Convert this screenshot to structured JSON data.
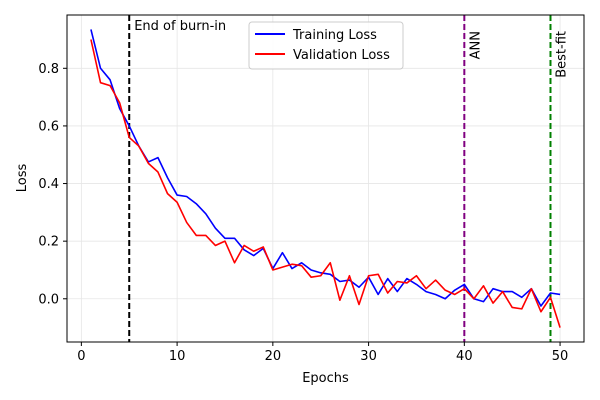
{
  "chart_data": {
    "type": "line",
    "title": "",
    "xlabel": "Epochs",
    "ylabel": "Loss",
    "xlim": [
      -1.5,
      52.5
    ],
    "ylim": [
      -0.15,
      0.985
    ],
    "xticks": [
      0,
      10,
      20,
      30,
      40,
      50
    ],
    "yticks": [
      0.0,
      0.2,
      0.4,
      0.6,
      0.8
    ],
    "ytick_labels": [
      "0.0",
      "0.2",
      "0.4",
      "0.6",
      "0.8"
    ],
    "grid": true,
    "legend_position": "top-center",
    "series": [
      {
        "name": "Training Loss",
        "color": "#0000ff",
        "x": [
          1,
          2,
          3,
          4,
          5,
          6,
          7,
          8,
          9,
          10,
          11,
          12,
          13,
          14,
          15,
          16,
          17,
          18,
          19,
          20,
          21,
          22,
          23,
          24,
          25,
          26,
          27,
          28,
          29,
          30,
          31,
          32,
          33,
          34,
          35,
          36,
          37,
          38,
          39,
          40,
          41,
          42,
          43,
          44,
          45,
          46,
          47,
          48,
          49,
          50
        ],
        "values": [
          0.935,
          0.8,
          0.76,
          0.66,
          0.6,
          0.53,
          0.475,
          0.49,
          0.42,
          0.36,
          0.355,
          0.33,
          0.295,
          0.245,
          0.21,
          0.21,
          0.17,
          0.15,
          0.175,
          0.105,
          0.16,
          0.105,
          0.125,
          0.1,
          0.09,
          0.085,
          0.06,
          0.065,
          0.04,
          0.075,
          0.015,
          0.07,
          0.025,
          0.07,
          0.05,
          0.025,
          0.015,
          0.0,
          0.03,
          0.05,
          0.0,
          -0.01,
          0.035,
          0.025,
          0.025,
          0.005,
          0.035,
          -0.025,
          0.02,
          0.015
        ]
      },
      {
        "name": "Validation Loss",
        "color": "#ff0000",
        "x": [
          1,
          2,
          3,
          4,
          5,
          6,
          7,
          8,
          9,
          10,
          11,
          12,
          13,
          14,
          15,
          16,
          17,
          18,
          19,
          20,
          21,
          22,
          23,
          24,
          25,
          26,
          27,
          28,
          29,
          30,
          31,
          32,
          33,
          34,
          35,
          36,
          37,
          38,
          39,
          40,
          41,
          42,
          43,
          44,
          45,
          46,
          47,
          48,
          49,
          50
        ],
        "values": [
          0.9,
          0.75,
          0.74,
          0.68,
          0.56,
          0.53,
          0.47,
          0.44,
          0.365,
          0.335,
          0.265,
          0.22,
          0.22,
          0.185,
          0.2,
          0.125,
          0.185,
          0.165,
          0.18,
          0.1,
          0.11,
          0.12,
          0.115,
          0.075,
          0.08,
          0.125,
          -0.005,
          0.08,
          -0.02,
          0.08,
          0.085,
          0.02,
          0.06,
          0.055,
          0.08,
          0.035,
          0.065,
          0.03,
          0.015,
          0.035,
          0.0,
          0.045,
          -0.015,
          0.025,
          -0.03,
          -0.035,
          0.035,
          -0.045,
          0.005,
          -0.1
        ]
      }
    ],
    "annotations": [
      {
        "label": "End of burn-in",
        "x": 5,
        "color": "#000000",
        "orientation": "horizontal"
      },
      {
        "label": "ANN",
        "x": 40,
        "color": "#800080",
        "orientation": "vertical"
      },
      {
        "label": "Best-fit",
        "x": 49,
        "color": "#008000",
        "orientation": "vertical"
      }
    ]
  }
}
